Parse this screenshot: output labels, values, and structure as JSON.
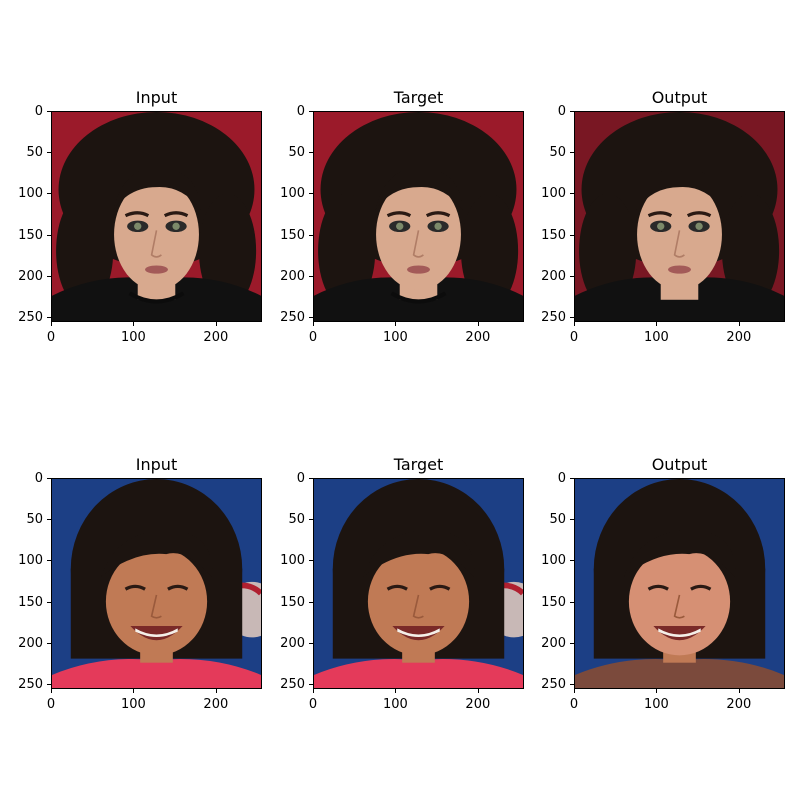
{
  "colors": {
    "red_bg": "#9b1a2a",
    "blue_bg": "#1c3f85",
    "hair_dark": "#1c1410",
    "skin_light": "#d8a98e",
    "skin_tan": "#c07a55"
  },
  "rows": [
    {
      "subject": "woman with dark curly hair on red background",
      "panels": [
        {
          "title": "Input"
        },
        {
          "title": "Target"
        },
        {
          "title": "Output"
        }
      ]
    },
    {
      "subject": "smiling woman with dark bob hair on blue background",
      "panels": [
        {
          "title": "Input"
        },
        {
          "title": "Target"
        },
        {
          "title": "Output"
        }
      ]
    }
  ],
  "axes": {
    "y_ticks": [
      "0",
      "50",
      "100",
      "150",
      "200",
      "250"
    ],
    "x_ticks": [
      "0",
      "100",
      "200"
    ],
    "xlim": [
      0,
      256
    ],
    "ylim": [
      256,
      0
    ]
  }
}
